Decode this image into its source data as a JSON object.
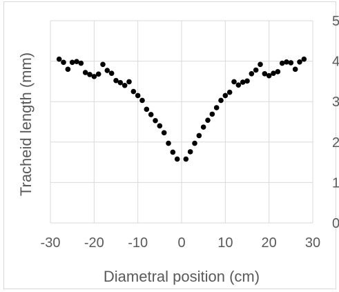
{
  "chart_data": {
    "type": "scatter",
    "title": "",
    "xlabel": "Diametral position (cm)",
    "ylabel": "Tracheid length (mm)",
    "xlim": [
      -30,
      30
    ],
    "ylim": [
      0,
      5
    ],
    "x_ticks": [
      "-30",
      "-20",
      "-10",
      "0",
      "10",
      "20",
      "30"
    ],
    "y_ticks_left": [],
    "y_ticks_right": [
      "0",
      "1",
      "2",
      "3",
      "4",
      "5"
    ],
    "grid": true,
    "legend": "none",
    "marker_color": "#000000",
    "series": [
      {
        "x": [
          -28,
          -27,
          -26,
          -25,
          -24,
          -23,
          -22,
          -21,
          -20,
          -19,
          -18,
          -17,
          -16,
          -15,
          -14,
          -13,
          -12,
          -11,
          -10,
          -9,
          -8,
          -7,
          -6,
          -5,
          -4,
          -3,
          -2,
          -1,
          1,
          2,
          3,
          4,
          5,
          6,
          7,
          8,
          9,
          10,
          11,
          12,
          13,
          14,
          15,
          16,
          17,
          18,
          19,
          20,
          21,
          22,
          23,
          24,
          25,
          26,
          27,
          28
        ],
        "y": [
          4.05,
          3.97,
          3.8,
          3.97,
          3.99,
          3.95,
          3.72,
          3.67,
          3.62,
          3.68,
          3.92,
          3.77,
          3.7,
          3.52,
          3.47,
          3.4,
          3.49,
          3.25,
          3.15,
          3.03,
          2.81,
          2.68,
          2.53,
          2.4,
          2.23,
          1.97,
          1.75,
          1.58,
          1.58,
          1.76,
          1.97,
          2.16,
          2.37,
          2.54,
          2.69,
          2.85,
          3.03,
          3.15,
          3.23,
          3.49,
          3.41,
          3.48,
          3.51,
          3.69,
          3.78,
          3.92,
          3.69,
          3.64,
          3.7,
          3.74,
          3.95,
          3.98,
          3.96,
          3.8,
          3.98,
          4.05
        ]
      }
    ]
  }
}
